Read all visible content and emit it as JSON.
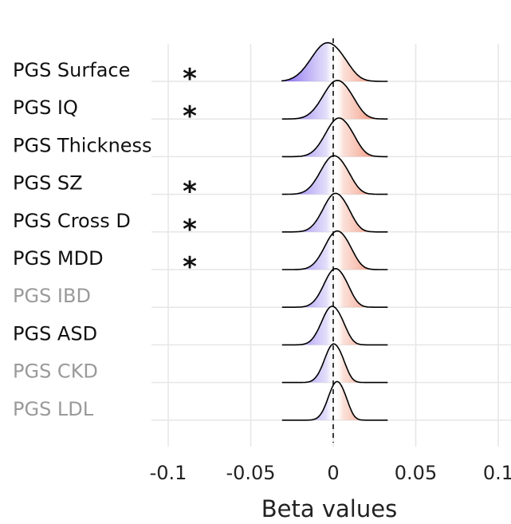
{
  "chart_data": {
    "type": "ridgeline",
    "title": "",
    "xlabel": "Beta values",
    "ylabel": "",
    "xlim": [
      -0.1,
      0.1
    ],
    "x_ticks": [
      "-0.1",
      "-0.05",
      "0",
      "0.05",
      "0.1"
    ],
    "x_tick_values": [
      -0.1,
      -0.05,
      0,
      0.05,
      0.1
    ],
    "reference_line": {
      "x": 0,
      "style": "dashed"
    },
    "fill_gradient": {
      "negative_color": "#8a72f0",
      "positive_color": "#ef7a5e"
    },
    "grid": true,
    "series": [
      {
        "name": "PGS Surface",
        "significant": true,
        "label_color": "#111111",
        "peak_x": -0.004,
        "spread": 0.0085,
        "significance_marker": "*"
      },
      {
        "name": "PGS IQ",
        "significant": true,
        "label_color": "#111111",
        "peak_x": 0.002,
        "spread": 0.0075,
        "significance_marker": "*"
      },
      {
        "name": "PGS Thickness",
        "significant": false,
        "label_color": "#111111",
        "peak_x": 0.003,
        "spread": 0.007,
        "significance_marker": ""
      },
      {
        "name": "PGS SZ",
        "significant": true,
        "label_color": "#111111",
        "peak_x": 0.0,
        "spread": 0.007,
        "significance_marker": "*"
      },
      {
        "name": "PGS Cross D",
        "significant": true,
        "label_color": "#111111",
        "peak_x": 0.001,
        "spread": 0.0065,
        "significance_marker": "*"
      },
      {
        "name": "PGS MDD",
        "significant": true,
        "label_color": "#111111",
        "peak_x": 0.002,
        "spread": 0.0065,
        "significance_marker": "*"
      },
      {
        "name": "PGS IBD",
        "significant": false,
        "label_color": "#9a9a9a",
        "peak_x": 0.001,
        "spread": 0.006,
        "significance_marker": ""
      },
      {
        "name": "PGS ASD",
        "significant": false,
        "label_color": "#111111",
        "peak_x": -0.001,
        "spread": 0.0055,
        "significance_marker": ""
      },
      {
        "name": "PGS CKD",
        "significant": false,
        "label_color": "#9a9a9a",
        "peak_x": 0.0,
        "spread": 0.0048,
        "significance_marker": ""
      },
      {
        "name": "PGS LDL",
        "significant": false,
        "label_color": "#9a9a9a",
        "peak_x": 0.002,
        "spread": 0.0045,
        "significance_marker": ""
      }
    ]
  }
}
